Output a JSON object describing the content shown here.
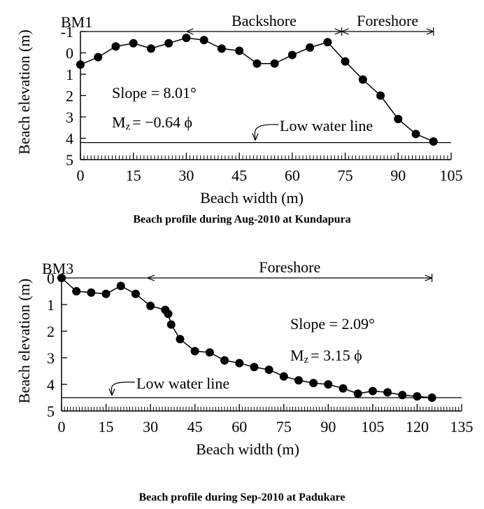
{
  "chart_data": [
    {
      "type": "line",
      "caption": "Beach profile during Aug-2010 at Kundapura",
      "xlabel": "Beach width (m)",
      "ylabel": "Beach elevation (m)",
      "x": [
        0,
        5,
        10,
        15,
        20,
        25,
        30,
        35,
        40,
        45,
        50,
        55,
        60,
        65,
        70,
        75,
        80,
        85,
        90,
        95,
        100
      ],
      "series": [
        {
          "color": "#000000",
          "values": [
            0.55,
            0.2,
            -0.3,
            -0.45,
            -0.2,
            -0.45,
            -0.7,
            -0.6,
            -0.2,
            -0.1,
            0.5,
            0.5,
            0.1,
            -0.25,
            -0.5,
            0.4,
            1.25,
            2,
            3.1,
            3.8,
            4.15
          ]
        }
      ],
      "xlim": [
        0,
        105
      ],
      "xticks": [
        0,
        15,
        30,
        45,
        60,
        75,
        90,
        105
      ],
      "xminor": 1,
      "ylim": [
        -1,
        5
      ],
      "yticks": [
        -1,
        0,
        1,
        2,
        3,
        4,
        5
      ],
      "y_inverted": true,
      "datum": "BM1",
      "zones": [
        {
          "label": "Backshore",
          "from": 30,
          "to": 74
        },
        {
          "label": "Foreshore",
          "from": 74,
          "to": 100
        }
      ],
      "slope": "Slope = 8.01°",
      "mz": {
        "main": "M",
        "sub": "z",
        "rest": "= −0.64 ϕ"
      },
      "low_water": {
        "label": "Low water line",
        "level": 4.2
      }
    },
    {
      "type": "line",
      "caption": "Beach profile during Sep-2010 at Padukare",
      "xlabel": "Beach width (m)",
      "ylabel": "Beach elevation (m)",
      "x": [
        0,
        5,
        10,
        15,
        20,
        25,
        30,
        35,
        36,
        37,
        40,
        45,
        50,
        55,
        60,
        65,
        70,
        75,
        80,
        85,
        90,
        95,
        100,
        105,
        110,
        115,
        120,
        125
      ],
      "series": [
        {
          "color": "#000000",
          "values": [
            0,
            0.5,
            0.55,
            0.6,
            0.3,
            0.6,
            1.05,
            1.2,
            1.35,
            1.75,
            2.3,
            2.75,
            2.8,
            3.1,
            3.2,
            3.35,
            3.45,
            3.7,
            3.85,
            3.95,
            4.0,
            4.15,
            4.35,
            4.25,
            4.3,
            4.4,
            4.45,
            4.5
          ]
        }
      ],
      "xlim": [
        0,
        135
      ],
      "xticks": [
        0,
        15,
        30,
        45,
        60,
        75,
        90,
        105,
        120,
        135
      ],
      "xminor": 1,
      "ylim": [
        0,
        5
      ],
      "yticks": [
        0,
        1,
        2,
        3,
        4,
        5
      ],
      "y_inverted": true,
      "datum": "BM3",
      "zones": [
        {
          "label": "Foreshore",
          "from": 29,
          "to": 125
        }
      ],
      "slope": "Slope = 2.09°",
      "mz": {
        "main": "M",
        "sub": "z",
        "rest": "= 3.15 ϕ"
      },
      "low_water": {
        "label": "Low water line",
        "level": 4.5
      }
    }
  ]
}
